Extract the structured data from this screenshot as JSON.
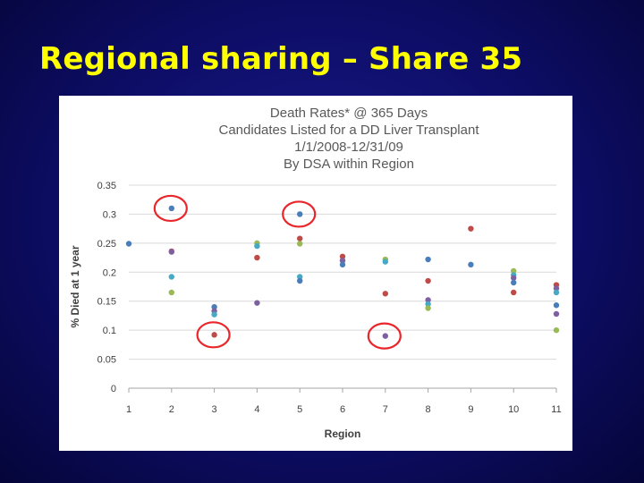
{
  "slide": {
    "title": "Regional sharing – Share 35"
  },
  "chart_data": {
    "type": "scatter",
    "title_lines": [
      "Death Rates* @ 365 Days",
      "Candidates Listed for a DD Liver Transplant",
      "1/1/2008-12/31/09",
      "By DSA within Region"
    ],
    "xlabel": "Region",
    "ylabel": "% Died at 1 year",
    "xlim": [
      1,
      11
    ],
    "ylim": [
      0,
      0.35
    ],
    "x_ticks": [
      1,
      2,
      3,
      4,
      5,
      6,
      7,
      8,
      9,
      10,
      11
    ],
    "y_ticks": [
      0,
      0.05,
      0.1,
      0.15,
      0.2,
      0.25,
      0.3,
      0.35
    ],
    "y_tick_labels": [
      "0",
      "0.05",
      "0.1",
      "0.15",
      "0.2",
      "0.25",
      "0.3",
      "0.35"
    ],
    "grid": "horizontal",
    "colors": {
      "blue": "#4a7ebb",
      "red": "#be4b48",
      "green": "#98b954",
      "purple": "#7d60a0",
      "teal": "#46aac5",
      "circle": "#e8262b"
    },
    "points": [
      {
        "x": 1,
        "y": 0.249,
        "color": "blue"
      },
      {
        "x": 2,
        "y": 0.31,
        "color": "blue"
      },
      {
        "x": 2,
        "y": 0.236,
        "color": "red"
      },
      {
        "x": 2,
        "y": 0.235,
        "color": "purple"
      },
      {
        "x": 2,
        "y": 0.192,
        "color": "teal"
      },
      {
        "x": 2,
        "y": 0.165,
        "color": "green"
      },
      {
        "x": 3,
        "y": 0.14,
        "color": "blue"
      },
      {
        "x": 3,
        "y": 0.133,
        "color": "purple"
      },
      {
        "x": 3,
        "y": 0.127,
        "color": "teal"
      },
      {
        "x": 3,
        "y": 0.092,
        "color": "red"
      },
      {
        "x": 4,
        "y": 0.25,
        "color": "green"
      },
      {
        "x": 4,
        "y": 0.245,
        "color": "teal"
      },
      {
        "x": 4,
        "y": 0.225,
        "color": "red"
      },
      {
        "x": 4,
        "y": 0.147,
        "color": "purple"
      },
      {
        "x": 5,
        "y": 0.3,
        "color": "blue"
      },
      {
        "x": 5,
        "y": 0.258,
        "color": "red"
      },
      {
        "x": 5,
        "y": 0.249,
        "color": "green"
      },
      {
        "x": 5,
        "y": 0.192,
        "color": "teal"
      },
      {
        "x": 5,
        "y": 0.185,
        "color": "blue"
      },
      {
        "x": 6,
        "y": 0.227,
        "color": "red"
      },
      {
        "x": 6,
        "y": 0.22,
        "color": "purple"
      },
      {
        "x": 6,
        "y": 0.213,
        "color": "blue"
      },
      {
        "x": 7,
        "y": 0.222,
        "color": "green"
      },
      {
        "x": 7,
        "y": 0.218,
        "color": "teal"
      },
      {
        "x": 7,
        "y": 0.163,
        "color": "red"
      },
      {
        "x": 7,
        "y": 0.09,
        "color": "purple"
      },
      {
        "x": 8,
        "y": 0.222,
        "color": "blue"
      },
      {
        "x": 8,
        "y": 0.185,
        "color": "red"
      },
      {
        "x": 8,
        "y": 0.152,
        "color": "purple"
      },
      {
        "x": 8,
        "y": 0.145,
        "color": "teal"
      },
      {
        "x": 8,
        "y": 0.138,
        "color": "green"
      },
      {
        "x": 9,
        "y": 0.275,
        "color": "red"
      },
      {
        "x": 9,
        "y": 0.213,
        "color": "blue"
      },
      {
        "x": 10,
        "y": 0.202,
        "color": "green"
      },
      {
        "x": 10,
        "y": 0.195,
        "color": "teal"
      },
      {
        "x": 10,
        "y": 0.19,
        "color": "purple"
      },
      {
        "x": 10,
        "y": 0.182,
        "color": "blue"
      },
      {
        "x": 10,
        "y": 0.165,
        "color": "red"
      },
      {
        "x": 11,
        "y": 0.178,
        "color": "red"
      },
      {
        "x": 11,
        "y": 0.172,
        "color": "purple"
      },
      {
        "x": 11,
        "y": 0.165,
        "color": "teal"
      },
      {
        "x": 11,
        "y": 0.143,
        "color": "blue"
      },
      {
        "x": 11,
        "y": 0.128,
        "color": "purple"
      },
      {
        "x": 11,
        "y": 0.1,
        "color": "green"
      }
    ],
    "highlights": [
      {
        "x": 2,
        "y": 0.31
      },
      {
        "x": 5,
        "y": 0.3
      },
      {
        "x": 3,
        "y": 0.092
      },
      {
        "x": 7,
        "y": 0.09
      }
    ]
  }
}
